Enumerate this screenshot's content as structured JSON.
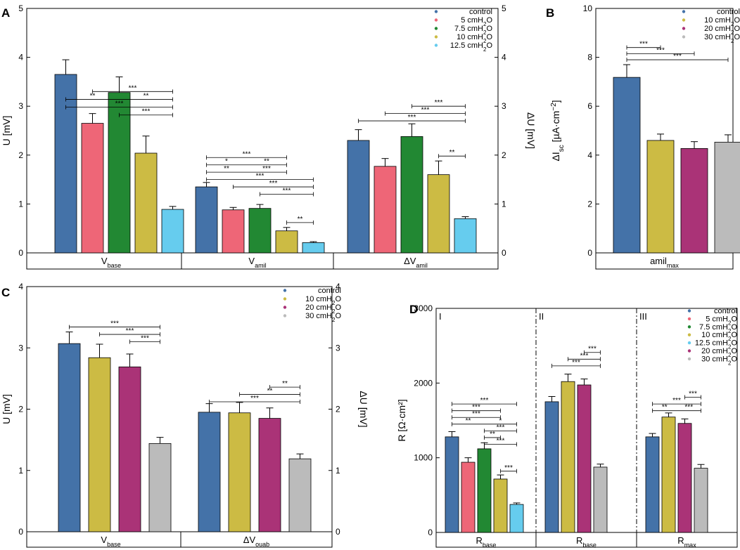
{
  "chart_data": [
    {
      "id": "A",
      "type": "bar",
      "panel_label": "A",
      "ylabel": "U [mV]",
      "y2label": "ΔU [mV]",
      "ylim": [
        0,
        5
      ],
      "y2lim": [
        0,
        5
      ],
      "yticks": [
        "0",
        "1",
        "2",
        "3",
        "4",
        "5"
      ],
      "y2ticks": [
        "0",
        "1",
        "2",
        "3",
        "4",
        "5"
      ],
      "legend": {
        "position": "top-right",
        "entries": [
          {
            "label": "control",
            "color": "#4472a8"
          },
          {
            "label": "5 cmH2O",
            "color": "#ee6677"
          },
          {
            "label": "7.5 cmH2O",
            "color": "#228833"
          },
          {
            "label": "10 cmH2O",
            "color": "#ccbb44"
          },
          {
            "label": "12.5 cmH2O",
            "color": "#66ccee"
          }
        ]
      },
      "groups": [
        {
          "label": "V_base",
          "main": "V",
          "sub": "base",
          "values": [
            3.65,
            2.65,
            3.28,
            2.04,
            0.89
          ],
          "errors": [
            0.3,
            0.2,
            0.32,
            0.35,
            0.06
          ]
        },
        {
          "label": "V_amil",
          "main": "V",
          "sub": "amil",
          "values": [
            1.35,
            0.88,
            0.91,
            0.45,
            0.21
          ],
          "errors": [
            0.09,
            0.05,
            0.08,
            0.07,
            0.02
          ]
        },
        {
          "label": "ΔV_amil",
          "main": "ΔV",
          "sub": "amil",
          "values": [
            2.3,
            1.77,
            2.38,
            1.6,
            0.7
          ],
          "errors": [
            0.22,
            0.16,
            0.26,
            0.28,
            0.04
          ]
        }
      ],
      "significance": [
        {
          "group": 0,
          "from": 1,
          "to": 4,
          "level": 3.3,
          "labels": [
            "***"
          ]
        },
        {
          "group": 0,
          "from": 0,
          "to": 4,
          "level": 3.14,
          "labels": [
            "**",
            "**"
          ]
        },
        {
          "group": 0,
          "from": 0,
          "to": 4,
          "level": 2.98,
          "labels": [
            "***"
          ]
        },
        {
          "group": 0,
          "from": 2,
          "to": 4,
          "level": 2.82,
          "labels": [
            "***"
          ]
        },
        {
          "group": 1,
          "from": 0,
          "to": 3,
          "level": 1.95,
          "labels": [
            "***"
          ]
        },
        {
          "group": 1,
          "from": 0,
          "to": 3,
          "level": 1.8,
          "labels": [
            "*",
            "**"
          ]
        },
        {
          "group": 1,
          "from": 0,
          "to": 3,
          "level": 1.65,
          "labels": [
            "**",
            "***"
          ]
        },
        {
          "group": 1,
          "from": 0,
          "to": 4,
          "level": 1.5,
          "labels": [
            "***"
          ]
        },
        {
          "group": 1,
          "from": 1,
          "to": 4,
          "level": 1.35,
          "labels": [
            "***"
          ]
        },
        {
          "group": 1,
          "from": 2,
          "to": 4,
          "level": 1.2,
          "labels": [
            "***"
          ]
        },
        {
          "group": 1,
          "from": 3,
          "to": 4,
          "level": 0.62,
          "labels": [
            "**"
          ]
        },
        {
          "group": 2,
          "from": 2,
          "to": 4,
          "level": 3.0,
          "labels": [
            "***"
          ]
        },
        {
          "group": 2,
          "from": 1,
          "to": 4,
          "level": 2.85,
          "labels": [
            "***"
          ]
        },
        {
          "group": 2,
          "from": 0,
          "to": 4,
          "level": 2.7,
          "labels": [
            "***"
          ]
        },
        {
          "group": 2,
          "from": 3,
          "to": 4,
          "level": 1.98,
          "labels": [
            "**"
          ]
        }
      ]
    },
    {
      "id": "B",
      "type": "bar",
      "panel_label": "B",
      "ylabel": "ΔIsc [µA·cm⁻²]",
      "ylabel_parts": {
        "delta": "ΔI",
        "sub": "sc",
        "unit": " [µA·cm",
        "exp": "−2",
        "close": "]"
      },
      "ylim": [
        0,
        10
      ],
      "yticks": [
        "0",
        "2",
        "4",
        "6",
        "8",
        "10"
      ],
      "legend": {
        "position": "top-right",
        "entries": [
          {
            "label": "control",
            "color": "#4472a8"
          },
          {
            "label": "10 cmH2O",
            "color": "#ccbb44"
          },
          {
            "label": "20 cmH2O",
            "color": "#aa3377"
          },
          {
            "label": "30 cmH2O",
            "color": "#bbbbbb"
          }
        ]
      },
      "groups": [
        {
          "label": "amil_max",
          "main": "amil",
          "sub": "max",
          "values": [
            7.18,
            4.6,
            4.27,
            4.53
          ],
          "errors": [
            0.52,
            0.26,
            0.28,
            0.3
          ]
        }
      ],
      "significance": [
        {
          "group": 0,
          "from": 0,
          "to": 1,
          "level": 8.4,
          "labels": [
            "***"
          ]
        },
        {
          "group": 0,
          "from": 0,
          "to": 2,
          "level": 8.15,
          "labels": [
            "***"
          ]
        },
        {
          "group": 0,
          "from": 0,
          "to": 3,
          "level": 7.9,
          "labels": [
            "***"
          ]
        }
      ]
    },
    {
      "id": "C",
      "type": "bar",
      "panel_label": "C",
      "ylabel": "U [mV]",
      "y2label": "ΔU [mV]",
      "ylim": [
        0,
        4
      ],
      "y2lim": [
        0,
        4
      ],
      "yticks": [
        "0",
        "1",
        "2",
        "3",
        "4"
      ],
      "y2ticks": [
        "0",
        "1",
        "2",
        "3",
        "4"
      ],
      "legend": {
        "position": "top-right",
        "entries": [
          {
            "label": "control",
            "color": "#4472a8"
          },
          {
            "label": "10 cmH2O",
            "color": "#ccbb44"
          },
          {
            "label": "20 cmH2O",
            "color": "#aa3377"
          },
          {
            "label": "30 cmH2O",
            "color": "#bbbbbb"
          }
        ]
      },
      "groups": [
        {
          "label": "V_base",
          "main": "V",
          "sub": "base",
          "values": [
            3.07,
            2.84,
            2.69,
            1.44
          ],
          "errors": [
            0.19,
            0.22,
            0.21,
            0.1
          ]
        },
        {
          "label": "ΔV_ouab",
          "main": "ΔV",
          "sub": "ouab",
          "values": [
            1.95,
            1.94,
            1.85,
            1.19
          ],
          "errors": [
            0.14,
            0.17,
            0.17,
            0.08
          ]
        }
      ],
      "significance": [
        {
          "group": 0,
          "from": 0,
          "to": 3,
          "level": 3.34,
          "labels": [
            "***"
          ]
        },
        {
          "group": 0,
          "from": 1,
          "to": 3,
          "level": 3.22,
          "labels": [
            "***"
          ]
        },
        {
          "group": 0,
          "from": 2,
          "to": 3,
          "level": 3.1,
          "labels": [
            "***"
          ]
        },
        {
          "group": 1,
          "from": 2,
          "to": 3,
          "level": 2.36,
          "labels": [
            "**"
          ]
        },
        {
          "group": 1,
          "from": 1,
          "to": 3,
          "level": 2.24,
          "labels": [
            "**"
          ]
        },
        {
          "group": 1,
          "from": 0,
          "to": 3,
          "level": 2.12,
          "labels": [
            "***"
          ]
        }
      ]
    },
    {
      "id": "D",
      "type": "bar",
      "panel_label": "D",
      "ylabel": "R [Ω·cm²]",
      "ylim": [
        0,
        3000
      ],
      "yticks": [
        "0",
        "1000",
        "2000",
        "3000"
      ],
      "sections": [
        "I",
        "II",
        "III"
      ],
      "legend": {
        "position": "top-right",
        "entries": [
          {
            "label": "control",
            "color": "#4472a8"
          },
          {
            "label": "5 cmH2O",
            "color": "#ee6677"
          },
          {
            "label": "7.5 cmH2O",
            "color": "#228833"
          },
          {
            "label": "10 cmH2O",
            "color": "#ccbb44"
          },
          {
            "label": "12.5 cmH2O",
            "color": "#66ccee"
          },
          {
            "label": "20 cmH2O",
            "color": "#aa3377"
          },
          {
            "label": "30 cmH2O",
            "color": "#bbbbbb"
          }
        ]
      },
      "groups": [
        {
          "label": "R_base",
          "main": "R",
          "sub": "base",
          "colors": [
            "#4472a8",
            "#ee6677",
            "#228833",
            "#ccbb44",
            "#66ccee"
          ],
          "values": [
            1280,
            940,
            1120,
            715,
            375
          ],
          "errors": [
            70,
            60,
            80,
            55,
            20
          ]
        },
        {
          "label": "R_base",
          "main": "R",
          "sub": "base",
          "colors": [
            "#4472a8",
            "#ccbb44",
            "#aa3377",
            "#bbbbbb"
          ],
          "values": [
            1750,
            2020,
            1975,
            875
          ],
          "errors": [
            70,
            100,
            80,
            40
          ]
        },
        {
          "label": "R_max",
          "main": "R",
          "sub": "max",
          "colors": [
            "#4472a8",
            "#ccbb44",
            "#aa3377",
            "#bbbbbb"
          ],
          "values": [
            1280,
            1545,
            1460,
            860
          ],
          "errors": [
            45,
            55,
            60,
            50
          ]
        }
      ],
      "significance": [
        {
          "group": 0,
          "from": 0,
          "to": 4,
          "level": 1720,
          "labels": [
            "***"
          ]
        },
        {
          "group": 0,
          "from": 0,
          "to": 3,
          "level": 1630,
          "labels": [
            "***"
          ]
        },
        {
          "group": 0,
          "from": 0,
          "to": 3,
          "level": 1540,
          "labels": [
            "***"
          ]
        },
        {
          "group": 0,
          "from": 0,
          "to": 4,
          "level": 1450,
          "labels": [
            "**",
            "*"
          ]
        },
        {
          "group": 0,
          "from": 2,
          "to": 4,
          "level": 1360,
          "labels": [
            "***"
          ]
        },
        {
          "group": 0,
          "from": 2,
          "to": 3,
          "level": 1270,
          "labels": [
            "**"
          ]
        },
        {
          "group": 0,
          "from": 2,
          "to": 4,
          "level": 1180,
          "labels": [
            "***"
          ]
        },
        {
          "group": 0,
          "from": 3,
          "to": 4,
          "level": 820,
          "labels": [
            "***"
          ]
        },
        {
          "group": 1,
          "from": 2,
          "to": 3,
          "level": 2410,
          "labels": [
            "***"
          ]
        },
        {
          "group": 1,
          "from": 1,
          "to": 3,
          "level": 2320,
          "labels": [
            "***"
          ]
        },
        {
          "group": 1,
          "from": 0,
          "to": 3,
          "level": 2230,
          "labels": [
            "***"
          ]
        },
        {
          "group": 2,
          "from": 2,
          "to": 3,
          "level": 1810,
          "labels": [
            "***"
          ]
        },
        {
          "group": 2,
          "from": 0,
          "to": 3,
          "level": 1720,
          "labels": [
            "***"
          ]
        },
        {
          "group": 2,
          "from": 0,
          "to": 3,
          "level": 1630,
          "labels": [
            "**",
            "***"
          ]
        }
      ]
    }
  ]
}
